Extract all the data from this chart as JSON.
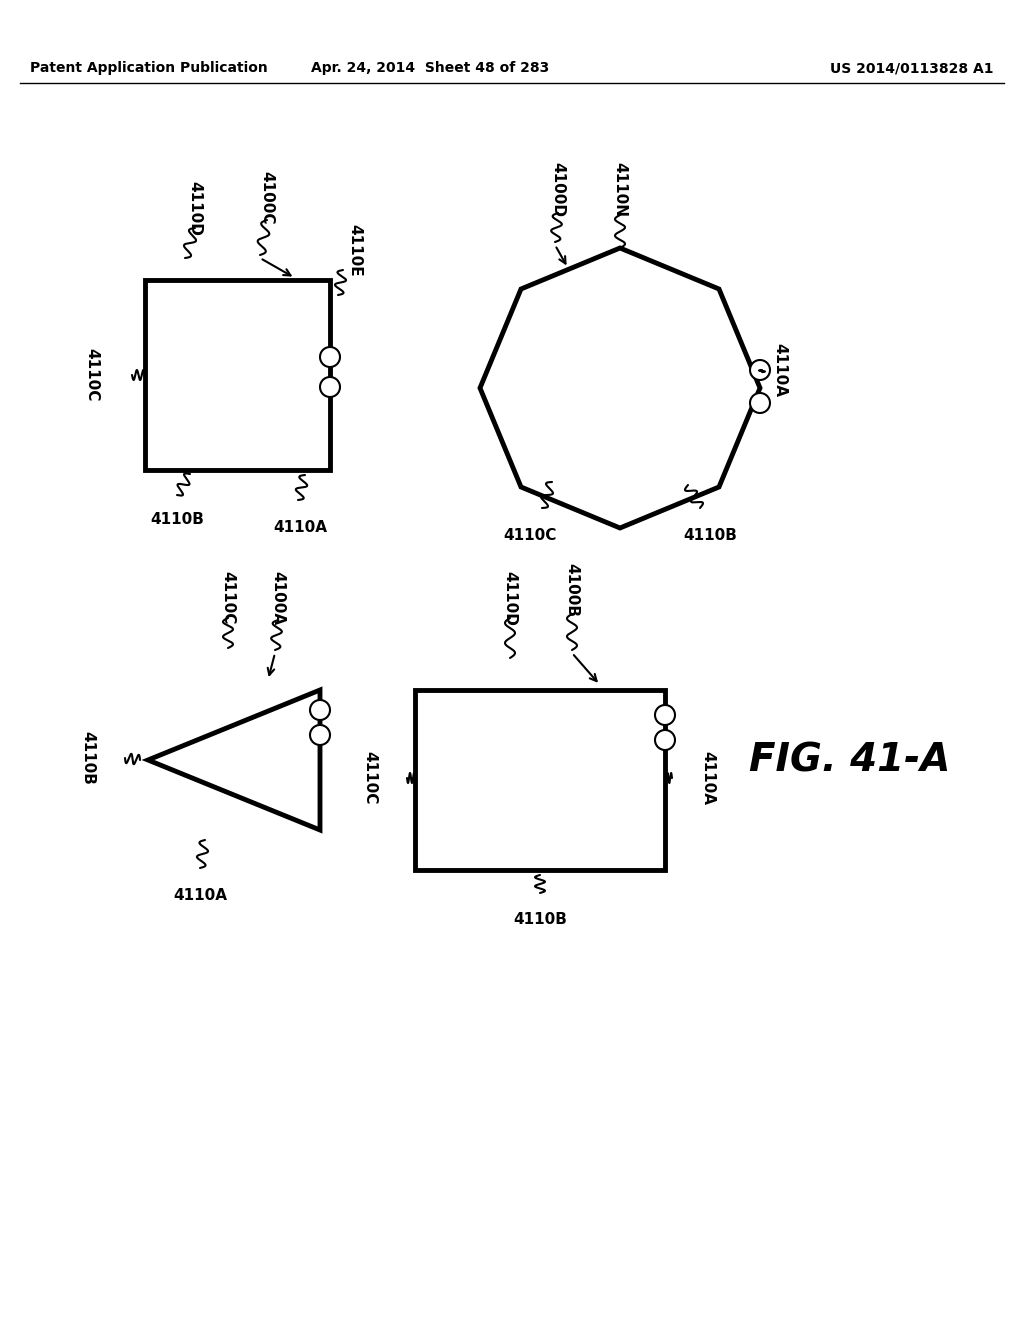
{
  "header_left": "Patent Application Publication",
  "header_mid": "Apr. 24, 2014  Sheet 48 of 283",
  "header_right": "US 2014/0113828 A1",
  "fig_label": "FIG. 41-A",
  "background_color": "#ffffff",
  "line_color": "#000000"
}
